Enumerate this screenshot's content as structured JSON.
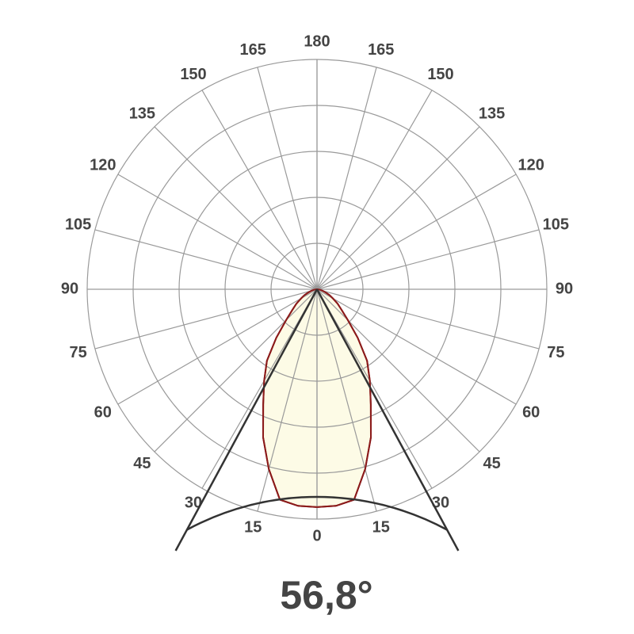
{
  "chart_data": {
    "type": "polar",
    "angle_ticks": [
      0,
      15,
      30,
      45,
      60,
      75,
      90,
      105,
      120,
      135,
      150,
      165,
      180
    ],
    "rlim": [
      0,
      5
    ],
    "rticks": [
      1,
      2,
      3,
      4,
      5
    ],
    "grid": true,
    "angles": [
      -90,
      -85,
      -80,
      -75,
      -70,
      -65,
      -60,
      -55,
      -50,
      -45,
      -40,
      -35,
      -30,
      -25,
      -20,
      -15,
      -10,
      -5,
      0,
      5,
      10,
      15,
      20,
      25,
      30,
      35,
      40,
      45,
      50,
      55,
      60,
      65,
      70,
      75,
      80,
      85,
      90
    ],
    "values": [
      0,
      0.03,
      0.08,
      0.13,
      0.2,
      0.3,
      0.4,
      0.55,
      0.7,
      0.95,
      1.38,
      1.9,
      2.3,
      2.77,
      3.43,
      4.05,
      4.65,
      4.73,
      4.74,
      4.73,
      4.65,
      4.05,
      3.43,
      2.77,
      2.3,
      1.9,
      1.38,
      0.95,
      0.7,
      0.55,
      0.4,
      0.3,
      0.2,
      0.13,
      0.08,
      0.03,
      0
    ],
    "color": "#8b1a1a",
    "fill": "#fdfbe6",
    "grid_color": "#9a9a9a",
    "beam_angle": {
      "value": 56.8,
      "label": "56,8°"
    }
  }
}
